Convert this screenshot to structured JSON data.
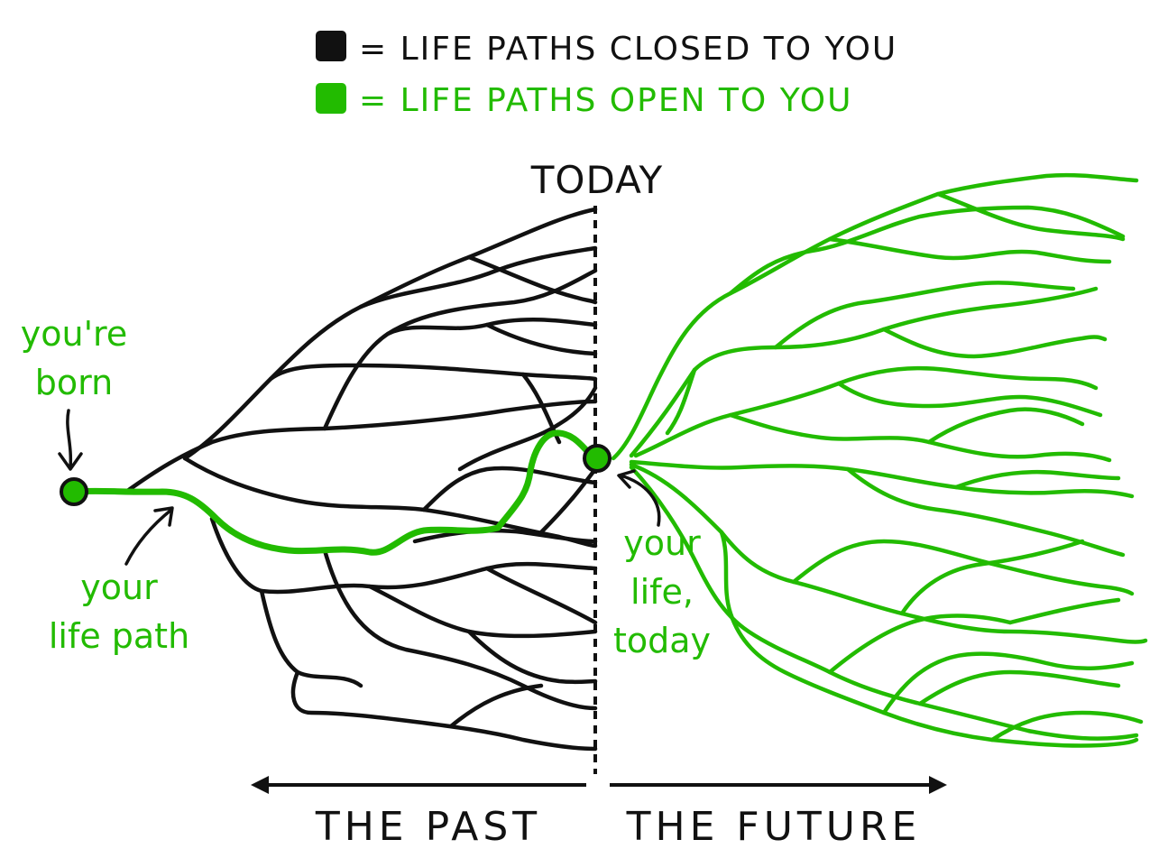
{
  "colors": {
    "closed": "#111111",
    "open": "#22bb00",
    "background": "#ffffff"
  },
  "legend": {
    "closed_label": "= LIFE PATHS CLOSED TO YOU",
    "open_label": "= LIFE PATHS OPEN TO YOU"
  },
  "today_label": "TODAY",
  "annotations": {
    "born_line1": "you're",
    "born_line2": "born",
    "path_line1": "your",
    "path_line2": "life path",
    "today_line1": "your",
    "today_line2": "life,",
    "today_line3": "today"
  },
  "timeline": {
    "past_label": "THE PAST",
    "future_label": "THE FUTURE"
  }
}
